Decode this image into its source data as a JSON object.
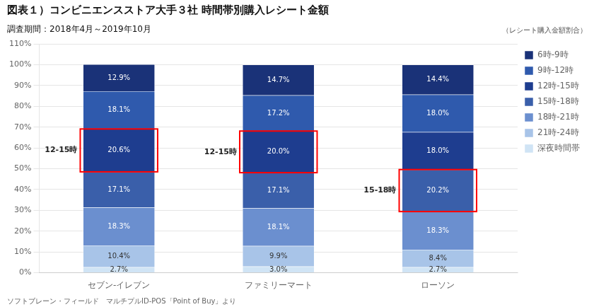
{
  "chart_data": {
    "type": "bar",
    "title": "図表１）コンビニエンスストア大手３社 時間帯別購入レシート金額",
    "subtitle": "調査期間：2018年4月～2019年10月",
    "subtitle2": "（レシート購入金額割合）",
    "footnote": "ソフトブレーン・フィールド　マルチプルID-POS「Point of Buy」より",
    "categories": [
      "セブン-イレブン",
      "ファミリーマート",
      "ローソン"
    ],
    "series": [
      {
        "name": "深夜時間帯",
        "color": "#d0e4f5",
        "values": [
          2.7,
          3.0,
          2.7
        ],
        "value_labels": [
          "2.7%",
          "3.0%",
          "2.7%"
        ]
      },
      {
        "name": "21時-24時",
        "color": "#a8c4e8",
        "values": [
          10.4,
          9.9,
          8.4
        ],
        "value_labels": [
          "10.4%",
          "9.9%",
          "8.4%"
        ]
      },
      {
        "name": "18時-21時",
        "color": "#6b8fcf",
        "values": [
          18.3,
          18.1,
          18.3
        ],
        "value_labels": [
          "18.3%",
          "18.1%",
          "18.3%"
        ]
      },
      {
        "name": "15時-18時",
        "color": "#3a5faa",
        "values": [
          17.1,
          17.1,
          20.2
        ],
        "value_labels": [
          "17.1%",
          "17.1%",
          "20.2%"
        ]
      },
      {
        "name": "12時-15時",
        "color": "#1e3d8f",
        "values": [
          20.6,
          20.0,
          18.0
        ],
        "value_labels": [
          "20.6%",
          "20.0%",
          "18.0%"
        ]
      },
      {
        "name": "9時-12時",
        "color": "#2f5aad",
        "values": [
          18.1,
          17.2,
          18.0
        ],
        "value_labels": [
          "18.1%",
          "17.2%",
          "18.0%"
        ]
      },
      {
        "name": "6時-9時",
        "color": "#1a3278",
        "values": [
          12.9,
          14.7,
          14.4
        ],
        "value_labels": [
          "12.9%",
          "14.7%",
          "14.4%"
        ]
      }
    ],
    "annotations": [
      {
        "text": "12-15時",
        "category": "セブン-イレブン",
        "series": "12時-15時",
        "color": "#ff0000"
      },
      {
        "text": "12-15時",
        "category": "ファミリーマート",
        "series": "12時-15時",
        "color": "#ff0000"
      },
      {
        "text": "15-18時",
        "category": "ローソン",
        "series": "15時-18時",
        "color": "#ff0000"
      }
    ],
    "stacked": true,
    "data_labels": true,
    "grid": true,
    "legend": "right",
    "ylim": [
      0,
      110
    ],
    "yticks": [
      {
        "value": 0,
        "label": "0%"
      },
      {
        "value": 10,
        "label": "10%"
      },
      {
        "value": 20,
        "label": "20%"
      },
      {
        "value": 30,
        "label": "30%"
      },
      {
        "value": 40,
        "label": "40%"
      },
      {
        "value": 50,
        "label": "50%"
      },
      {
        "value": 60,
        "label": "60%"
      },
      {
        "value": 70,
        "label": "70%"
      },
      {
        "value": 80,
        "label": "80%"
      },
      {
        "value": 90,
        "label": "90%"
      },
      {
        "value": 100,
        "label": "100%"
      },
      {
        "value": 110,
        "label": "110%"
      }
    ]
  }
}
